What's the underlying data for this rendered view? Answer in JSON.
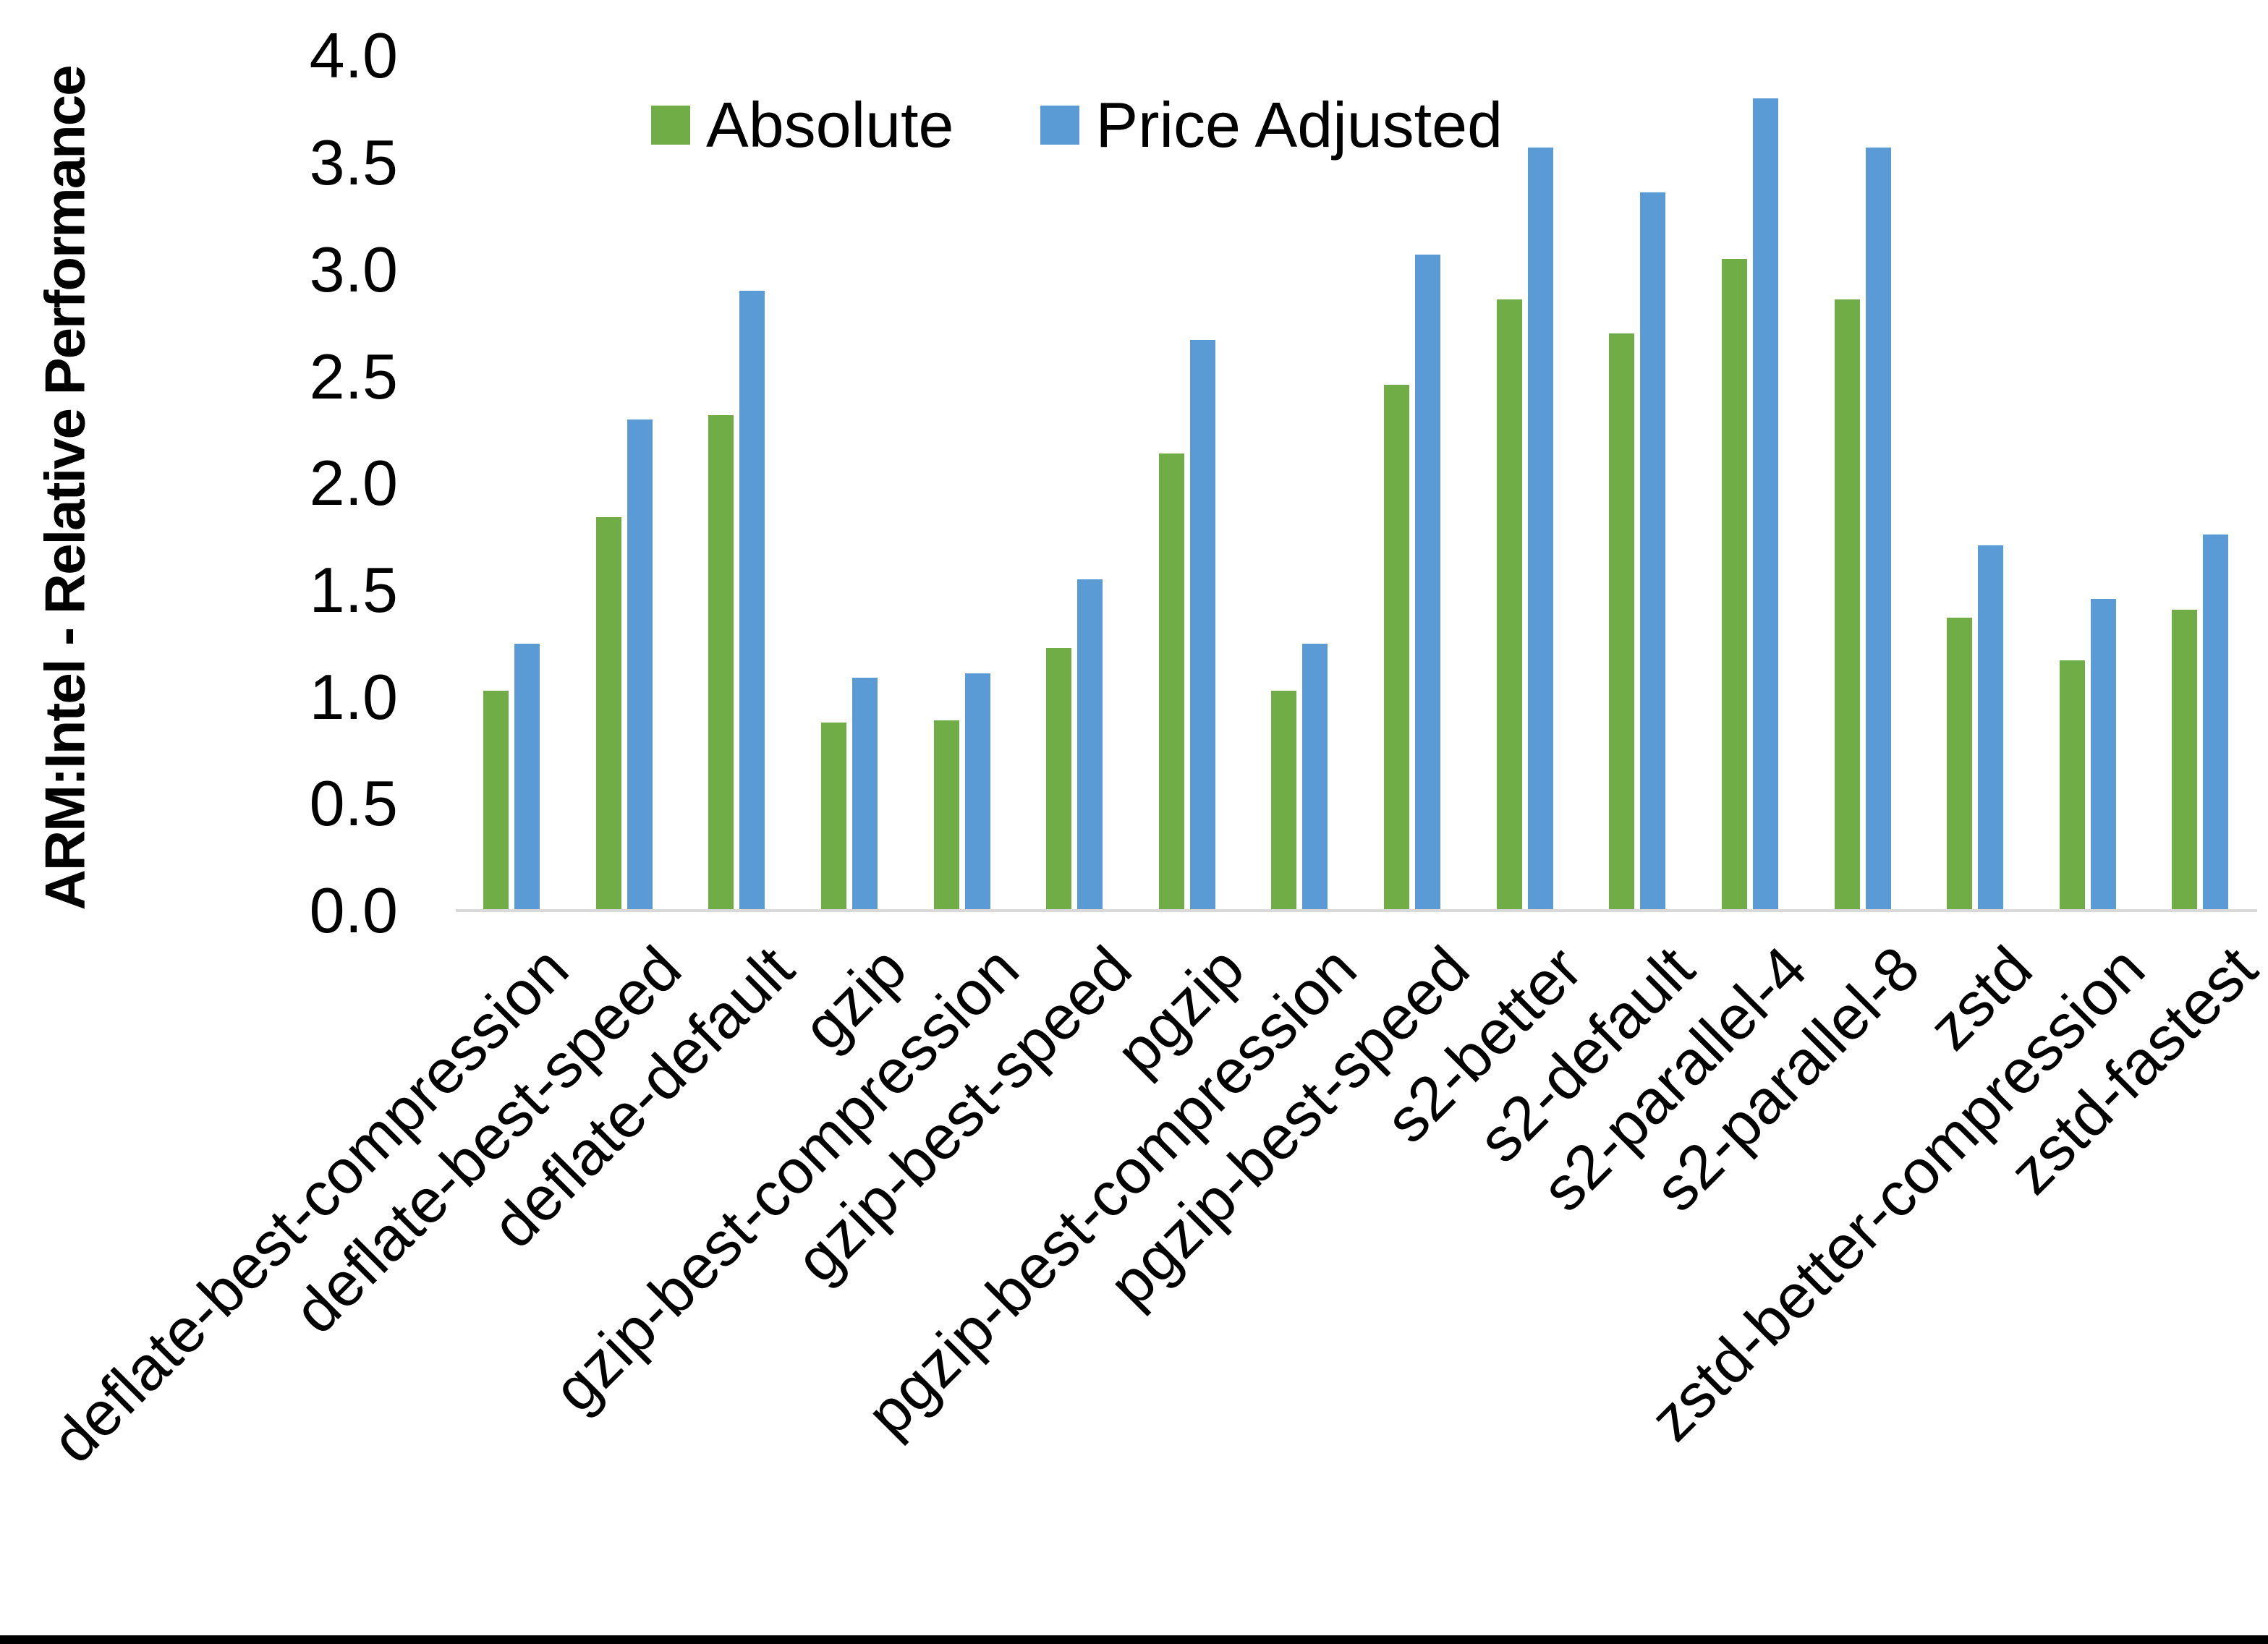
{
  "chart_data": {
    "type": "bar",
    "title": "",
    "ylabel": "ARM:Intel - Relative Performance",
    "xlabel": "",
    "ylim": [
      0.0,
      4.0
    ],
    "ytick_step": 0.5,
    "yticks": [
      "0.0",
      "0.5",
      "1.0",
      "1.5",
      "2.0",
      "2.5",
      "3.0",
      "3.5",
      "4.0"
    ],
    "grid": "off",
    "legend_position": "top-center-inside",
    "categories": [
      "deflate-best-compression",
      "deflate-best-speed",
      "deflate-default",
      "gzip",
      "gzip-best-compression",
      "gzip-best-speed",
      "pgzip",
      "pgzip-best-compression",
      "pgzip-best-speed",
      "s2-better",
      "s2-default",
      "s2-parallel-4",
      "s2-parallel-8",
      "zstd",
      "zstd-better-compression",
      "zstd-fastest"
    ],
    "series": [
      {
        "name": "Absolute",
        "color": "#70AD47",
        "values": [
          1.03,
          1.84,
          2.32,
          0.88,
          0.89,
          1.23,
          2.14,
          1.03,
          2.46,
          2.86,
          2.7,
          3.05,
          2.86,
          1.37,
          1.17,
          1.41
        ]
      },
      {
        "name": "Price Adjusted",
        "color": "#5B9BD5",
        "values": [
          1.25,
          2.3,
          2.9,
          1.09,
          1.11,
          1.55,
          2.67,
          1.25,
          3.07,
          3.57,
          3.36,
          3.8,
          3.57,
          1.71,
          1.46,
          1.76
        ]
      }
    ],
    "axis_line_color": "#D9D9D9"
  }
}
